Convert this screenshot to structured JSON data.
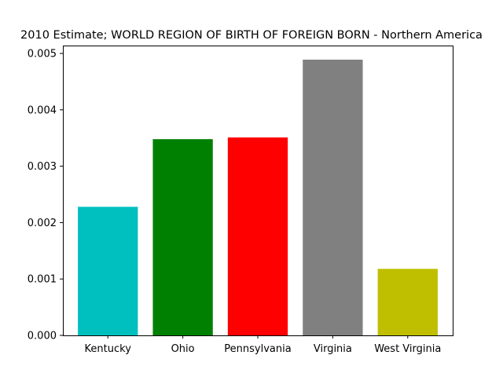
{
  "chart_data": {
    "type": "bar",
    "title": "2010 Estimate; WORLD REGION OF BIRTH OF FOREIGN BORN - Northern America",
    "xlabel": "",
    "ylabel": "",
    "categories": [
      "Kentucky",
      "Ohio",
      "Pennsylvania",
      "Virginia",
      "West Virginia"
    ],
    "values": [
      0.00228,
      0.00348,
      0.00351,
      0.00489,
      0.00118
    ],
    "colors": [
      "#00bfbf",
      "#008000",
      "#ff0000",
      "#808080",
      "#bfbf00"
    ],
    "ylim": [
      0,
      0.00514
    ],
    "yticks": [
      "0.000",
      "0.001",
      "0.002",
      "0.003",
      "0.004",
      "0.005"
    ],
    "grid": false,
    "legend": "none"
  }
}
